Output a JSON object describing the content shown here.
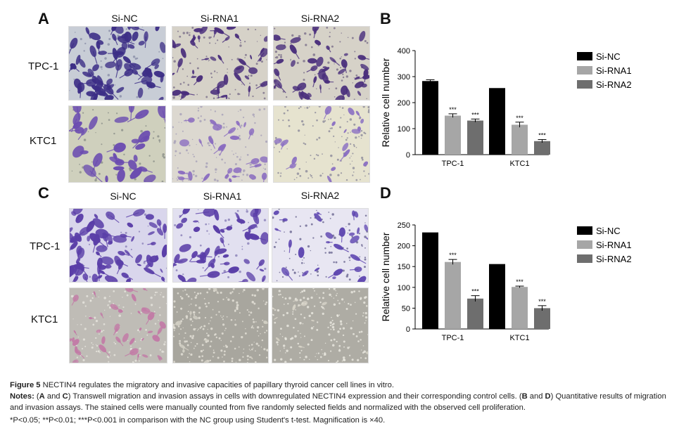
{
  "panels": {
    "A": {
      "letter": "A",
      "rows": [
        "TPC-1",
        "KTC1"
      ],
      "cols": [
        "Si-NC",
        "Si-RNA1",
        "Si-RNA2"
      ]
    },
    "C": {
      "letter": "C",
      "rows": [
        "TPC-1",
        "KTC1"
      ],
      "cols": [
        "Si-NC",
        "Si-RNA1",
        "Si-RNA2"
      ]
    },
    "B": {
      "letter": "B"
    },
    "D": {
      "letter": "D"
    }
  },
  "chart_data": [
    {
      "id": "B",
      "type": "bar",
      "categories": [
        "TPC-1",
        "KTC1"
      ],
      "ylabel": "Relative cell number",
      "ylim": [
        0,
        400
      ],
      "yticks": [
        0,
        100,
        200,
        300,
        400
      ],
      "series": [
        {
          "name": "Si-NC",
          "color": "#000000",
          "values": [
            283,
            256
          ],
          "errors": [
            5,
            0
          ],
          "sig": [
            "",
            ""
          ]
        },
        {
          "name": "Si-RNA1",
          "color": "#a6a6a6",
          "values": [
            150,
            115
          ],
          "errors": [
            7,
            10
          ],
          "sig": [
            "***",
            "***"
          ]
        },
        {
          "name": "Si-RNA2",
          "color": "#6e6e6e",
          "values": [
            131,
            52
          ],
          "errors": [
            6,
            6
          ],
          "sig": [
            "***",
            "***"
          ]
        }
      ]
    },
    {
      "id": "D",
      "type": "bar",
      "categories": [
        "TPC-1",
        "KTC1"
      ],
      "ylabel": "Relative cell number",
      "ylim": [
        0,
        250
      ],
      "yticks": [
        0,
        50,
        100,
        150,
        200,
        250
      ],
      "series": [
        {
          "name": "Si-NC",
          "color": "#000000",
          "values": [
            232,
            156
          ],
          "errors": [
            0,
            0
          ],
          "sig": [
            "",
            ""
          ]
        },
        {
          "name": "Si-RNA1",
          "color": "#a6a6a6",
          "values": [
            161,
            101
          ],
          "errors": [
            6,
            2
          ],
          "sig": [
            "***",
            "***"
          ]
        },
        {
          "name": "Si-RNA2",
          "color": "#6e6e6e",
          "values": [
            73,
            50
          ],
          "errors": [
            7,
            6
          ],
          "sig": [
            "***",
            "***"
          ]
        }
      ]
    }
  ],
  "caption": {
    "title_bold": "Figure 5",
    "title_text": " NECTIN4 regulates the migratory and invasive capacities of papillary thyroid cancer cell lines in vitro.",
    "notes_bold": "Notes:",
    "notes_p1": " (",
    "notes_A": "A",
    "notes_and1": " and ",
    "notes_C": "C",
    "notes_p2": ") Transwell migration and invasion assays in cells with downregulated NECTIN4 expression and their corresponding control cells. (",
    "notes_B": "B",
    "notes_and2": " and ",
    "notes_D": "D",
    "notes_p3": ") Quantitative results of migration and invasion assays. The stained cells were manually counted from five randomly selected fields and normalized with the observed cell proliferation.",
    "line3": "*P<0.05; **P<0.01; ***P<0.001 in comparison with the NC group using Student's t-test. Magnification is ×40."
  }
}
